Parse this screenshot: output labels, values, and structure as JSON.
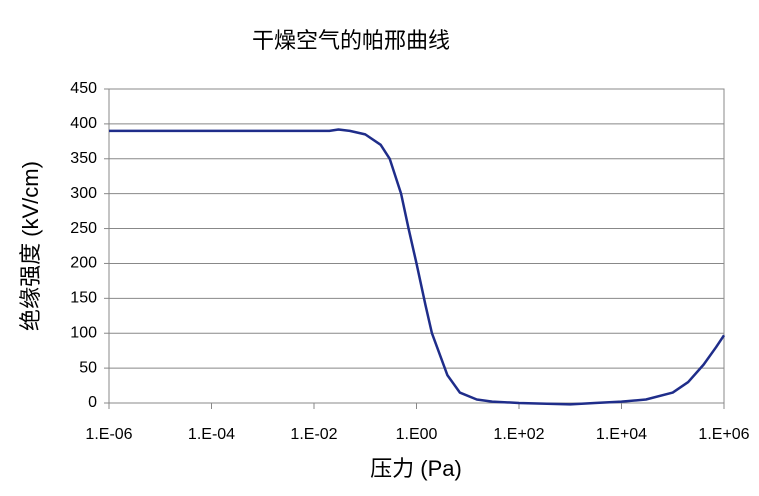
{
  "chart_data": {
    "type": "line",
    "title": "干燥空气的帕邢曲线",
    "x_label": "压力 (Pa)",
    "y_label": "绝缘强度 (kV/cm)",
    "x": [
      1e-06,
      0.0001,
      0.01,
      0.02,
      0.03,
      0.05,
      0.1,
      0.2,
      0.3,
      0.5,
      0.7,
      1,
      1.5,
      2,
      4,
      7,
      15,
      30,
      100,
      1000,
      3000,
      10000,
      30000,
      100000,
      200000,
      400000,
      700000,
      1000000
    ],
    "series": [
      {
        "name": "帕邢曲线",
        "color": "#1f2d8a",
        "values": [
          390,
          390,
          390,
          390,
          392,
          390,
          385,
          370,
          350,
          300,
          250,
          200,
          140,
          100,
          40,
          15,
          5,
          2,
          0,
          -2,
          0,
          2,
          5,
          15,
          30,
          55,
          80,
          97
        ]
      }
    ],
    "xscale": "log",
    "xlim": [
      1e-06,
      1000000.0
    ],
    "xticks": [
      {
        "value": 1e-06,
        "label": "1.E-06"
      },
      {
        "value": 0.0001,
        "label": "1.E-04"
      },
      {
        "value": 0.01,
        "label": "1.E-02"
      },
      {
        "value": 1,
        "label": "1.E00"
      },
      {
        "value": 100,
        "label": "1.E+02"
      },
      {
        "value": 10000,
        "label": "1.E+04"
      },
      {
        "value": 1000000,
        "label": "1.E+06"
      }
    ],
    "ylim": [
      0,
      450
    ],
    "yticks": [
      0,
      50,
      100,
      150,
      200,
      250,
      300,
      350,
      400,
      450
    ],
    "grid": true
  }
}
